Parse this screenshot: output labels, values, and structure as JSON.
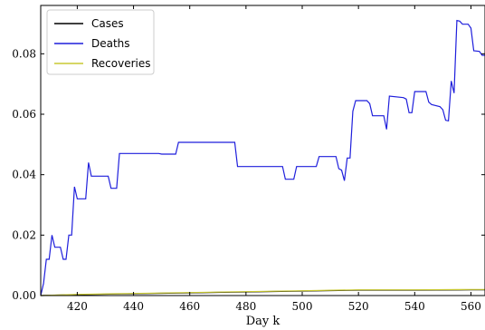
{
  "chart_data": {
    "type": "line",
    "xlabel": "Day k",
    "ylabel": "",
    "xlim": [
      407,
      565
    ],
    "ylim": [
      0,
      0.096
    ],
    "x_ticks": [
      420,
      440,
      460,
      480,
      500,
      520,
      540,
      560
    ],
    "y_ticks": [
      0.0,
      0.02,
      0.04,
      0.06,
      0.08
    ],
    "y_tick_labels": [
      "0.00",
      "0.02",
      "0.04",
      "0.06",
      "0.08"
    ],
    "grid": false,
    "legend_position": "top-left",
    "series": [
      {
        "name": "Cases",
        "color": "#000000",
        "points": [
          [
            407,
            0.0
          ],
          [
            420,
            0.0003
          ],
          [
            440,
            0.0006
          ],
          [
            460,
            0.0009
          ],
          [
            480,
            0.0012
          ],
          [
            500,
            0.0015
          ],
          [
            520,
            0.0018
          ],
          [
            540,
            0.0018
          ],
          [
            560,
            0.0019
          ],
          [
            565,
            0.0019
          ]
        ]
      },
      {
        "name": "Deaths",
        "color": "#1f1fdc",
        "points": [
          [
            407,
            0.0
          ],
          [
            408,
            0.004
          ],
          [
            409,
            0.012
          ],
          [
            410,
            0.012
          ],
          [
            411,
            0.02
          ],
          [
            412,
            0.016
          ],
          [
            414,
            0.016
          ],
          [
            415,
            0.012
          ],
          [
            416,
            0.012
          ],
          [
            417,
            0.02
          ],
          [
            418,
            0.02
          ],
          [
            419,
            0.036
          ],
          [
            420,
            0.032
          ],
          [
            423,
            0.032
          ],
          [
            424,
            0.044
          ],
          [
            425,
            0.0395
          ],
          [
            431,
            0.0395
          ],
          [
            432,
            0.0355
          ],
          [
            434,
            0.0355
          ],
          [
            435,
            0.047
          ],
          [
            449,
            0.047
          ],
          [
            450,
            0.0468
          ],
          [
            455,
            0.0468
          ],
          [
            456,
            0.0507
          ],
          [
            476,
            0.0507
          ],
          [
            477,
            0.0427
          ],
          [
            493,
            0.0427
          ],
          [
            494,
            0.0385
          ],
          [
            497,
            0.0385
          ],
          [
            498,
            0.0427
          ],
          [
            505,
            0.0427
          ],
          [
            506,
            0.046
          ],
          [
            512,
            0.046
          ],
          [
            513,
            0.042
          ],
          [
            514,
            0.0415
          ],
          [
            515,
            0.038
          ],
          [
            516,
            0.0455
          ],
          [
            517,
            0.0455
          ],
          [
            518,
            0.061
          ],
          [
            519,
            0.0645
          ],
          [
            523,
            0.0645
          ],
          [
            524,
            0.0635
          ],
          [
            525,
            0.0595
          ],
          [
            529,
            0.0595
          ],
          [
            530,
            0.055
          ],
          [
            531,
            0.066
          ],
          [
            536,
            0.0655
          ],
          [
            537,
            0.065
          ],
          [
            538,
            0.0605
          ],
          [
            539,
            0.0605
          ],
          [
            540,
            0.0675
          ],
          [
            544,
            0.0675
          ],
          [
            545,
            0.064
          ],
          [
            546,
            0.0632
          ],
          [
            549,
            0.0625
          ],
          [
            550,
            0.0615
          ],
          [
            551,
            0.058
          ],
          [
            552,
            0.0578
          ],
          [
            553,
            0.071
          ],
          [
            554,
            0.067
          ],
          [
            555,
            0.091
          ],
          [
            556,
            0.0908
          ],
          [
            557,
            0.0898
          ],
          [
            559,
            0.0898
          ],
          [
            560,
            0.0885
          ],
          [
            561,
            0.081
          ],
          [
            563,
            0.0808
          ],
          [
            564,
            0.0795
          ],
          [
            565,
            0.0795
          ]
        ]
      },
      {
        "name": "Recoveries",
        "color": "#c8c832",
        "points": [
          [
            407,
            0.0
          ],
          [
            420,
            0.0004
          ],
          [
            440,
            0.0007
          ],
          [
            460,
            0.001
          ],
          [
            480,
            0.0013
          ],
          [
            500,
            0.0016
          ],
          [
            520,
            0.0019
          ],
          [
            540,
            0.0019
          ],
          [
            560,
            0.002
          ],
          [
            565,
            0.002
          ]
        ]
      }
    ]
  }
}
